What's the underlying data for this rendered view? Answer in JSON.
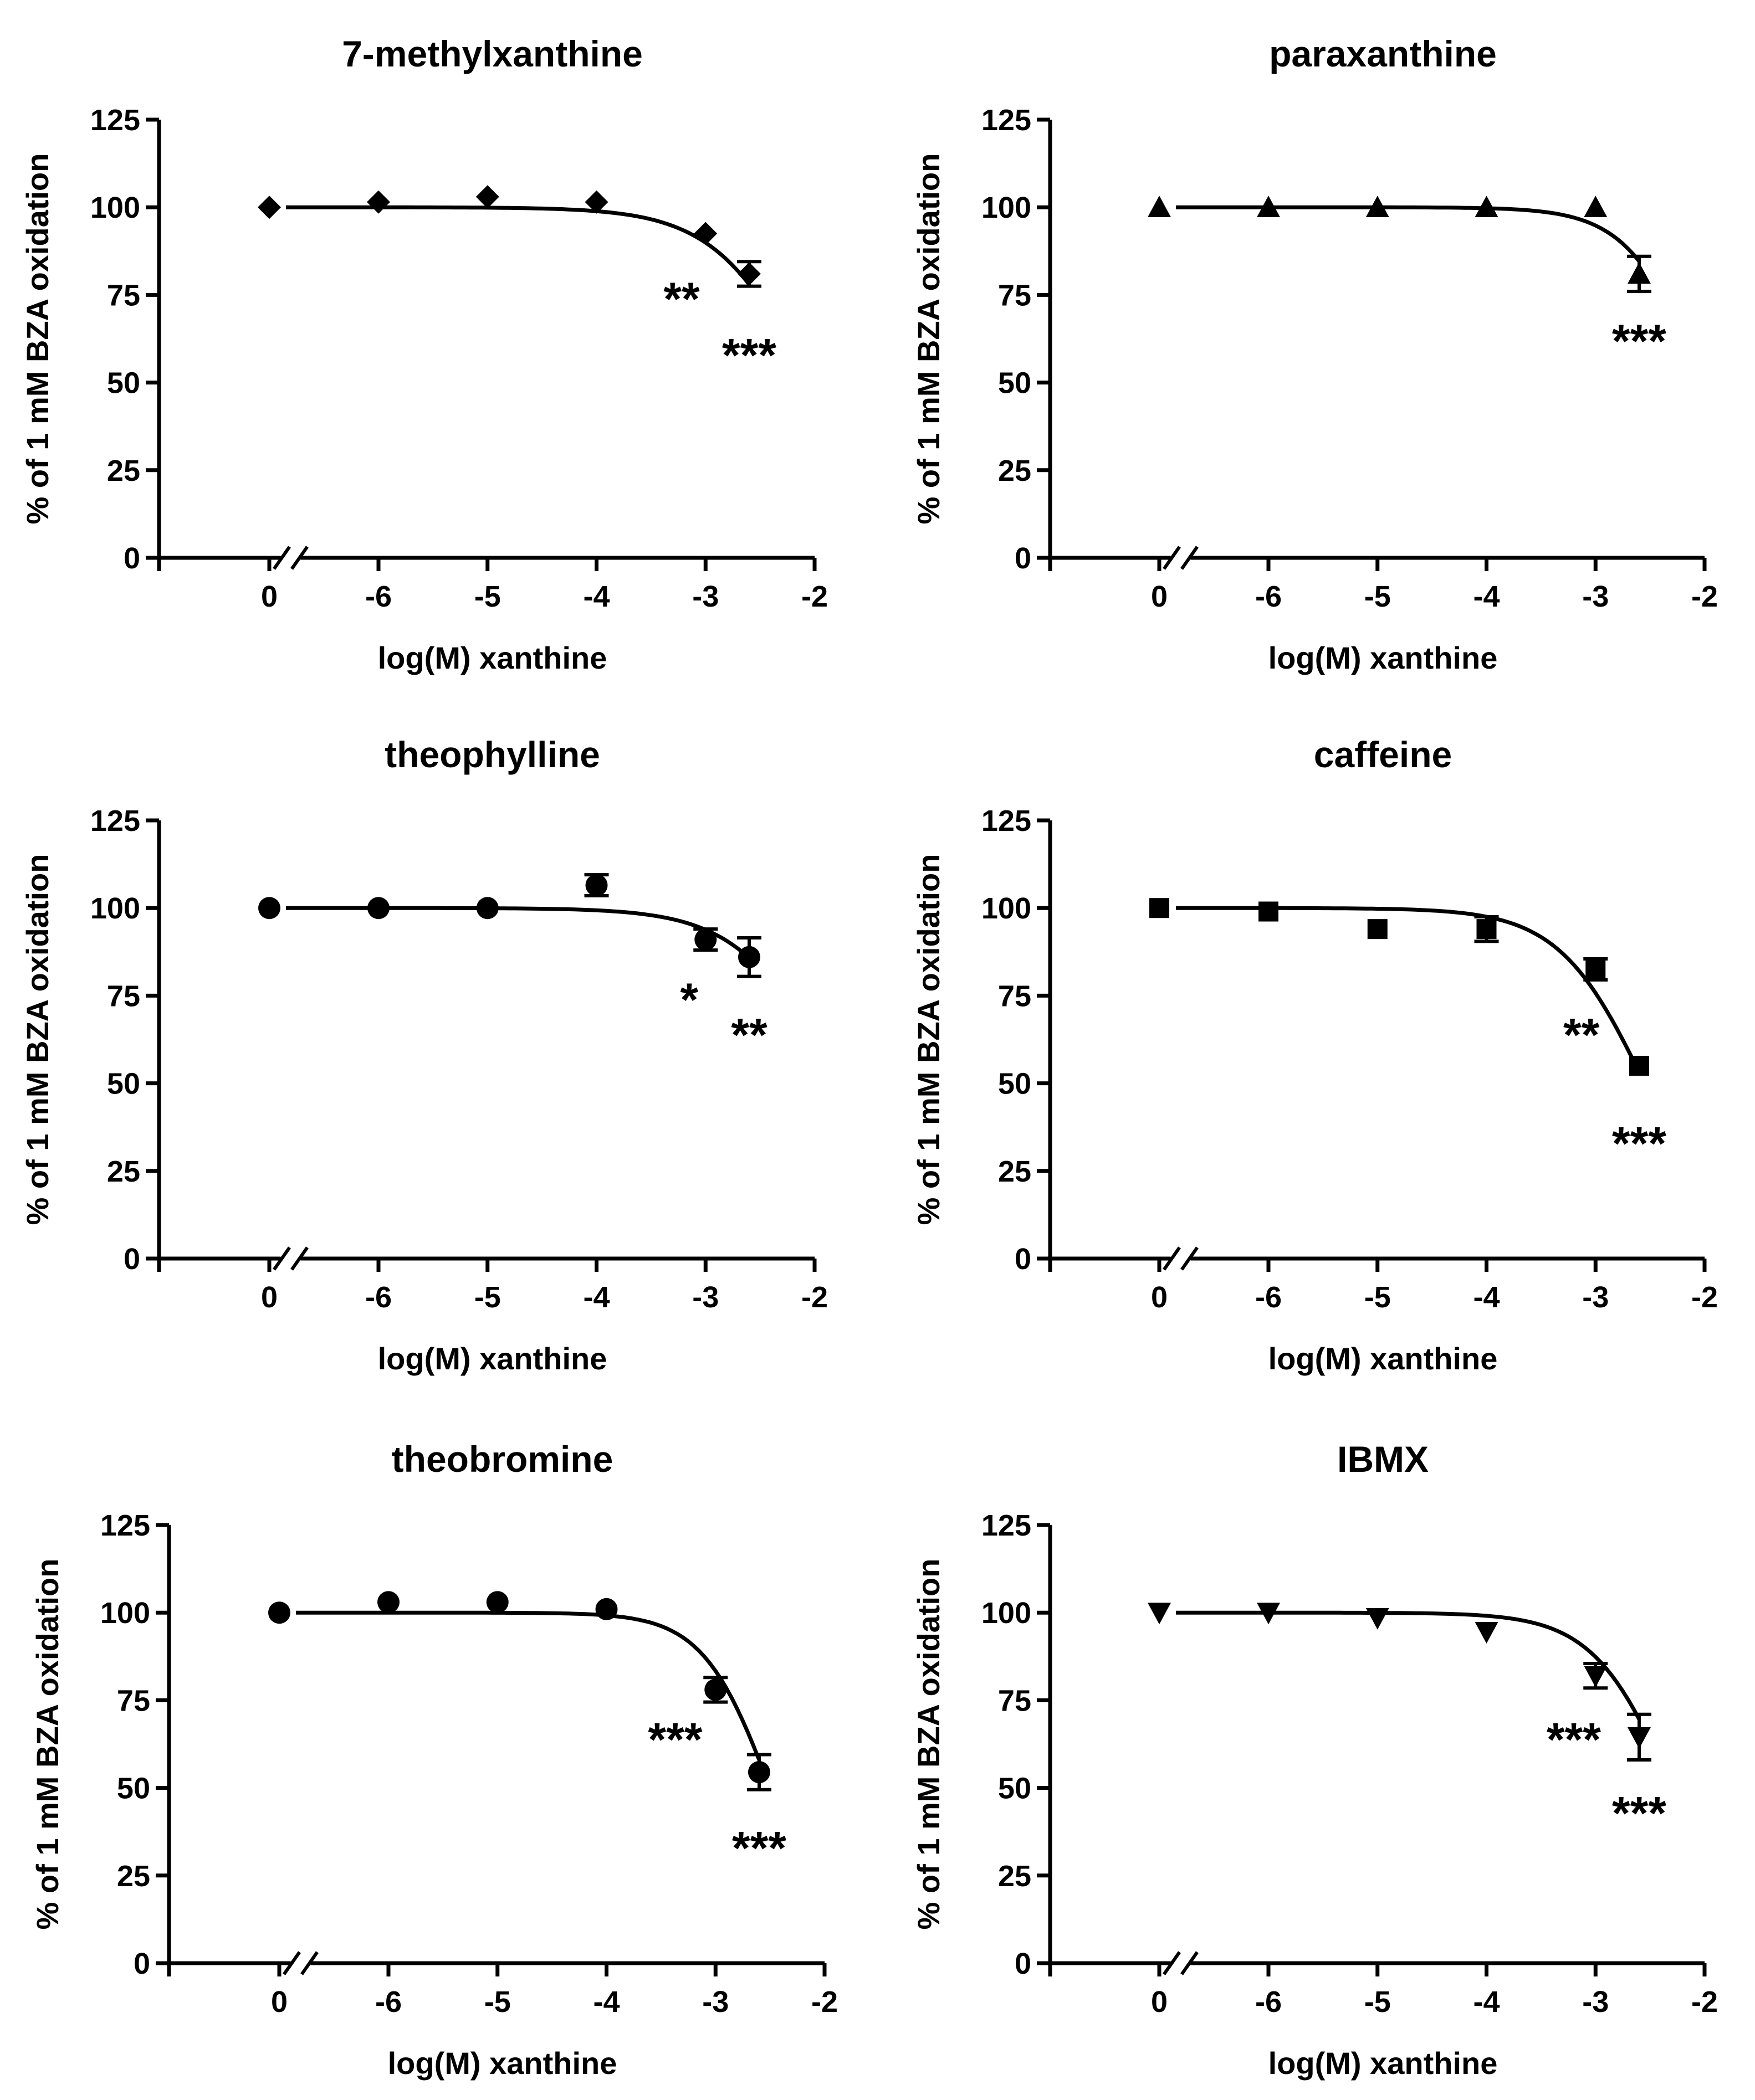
{
  "chart_data": [
    {
      "type": "line",
      "title": "7-methylxanthine",
      "xlabel": "log(M) xanthine",
      "ylabel": "% of 1 mM BZA oxidation",
      "xticks": [
        "0",
        "-6",
        "-5",
        "-4",
        "-3",
        "-2"
      ],
      "yticks": [
        "0",
        "25",
        "50",
        "75",
        "100",
        "125"
      ],
      "ylim": [
        0,
        125
      ],
      "xlim": [
        -7,
        -2
      ],
      "marker": "diamond",
      "points": [
        {
          "x": 0,
          "y": 100,
          "err": 0
        },
        {
          "x": -6,
          "y": 101.5,
          "err": 0
        },
        {
          "x": -5,
          "y": 103,
          "err": 0
        },
        {
          "x": -4,
          "y": 101.5,
          "err": 0
        },
        {
          "x": -3,
          "y": 92.5,
          "err": 0
        },
        {
          "x": -2.6,
          "y": 81,
          "err": 3.5
        }
      ],
      "fit": {
        "top": 100,
        "bottom": 0,
        "logIC50": -2.05,
        "hill": 1
      },
      "annotations": [
        {
          "text": "**",
          "x": -3.22,
          "y": 74
        },
        {
          "text": "***",
          "x": -2.6,
          "y": 58
        }
      ]
    },
    {
      "type": "line",
      "title": "paraxanthine",
      "xlabel": "log(M) xanthine",
      "ylabel": "% of 1 mM BZA oxidation",
      "xticks": [
        "0",
        "-6",
        "-5",
        "-4",
        "-3",
        "-2"
      ],
      "yticks": [
        "0",
        "25",
        "50",
        "75",
        "100",
        "125"
      ],
      "ylim": [
        0,
        125
      ],
      "xlim": [
        -7,
        -2
      ],
      "marker": "triangle",
      "points": [
        {
          "x": 0,
          "y": 100,
          "err": 0
        },
        {
          "x": -6,
          "y": 100,
          "err": 0
        },
        {
          "x": -5,
          "y": 100,
          "err": 0
        },
        {
          "x": -4,
          "y": 100,
          "err": 0
        },
        {
          "x": -3,
          "y": 100,
          "err": 0
        },
        {
          "x": -2.6,
          "y": 81,
          "err": 5
        }
      ],
      "fit": {
        "top": 100,
        "bottom": 0,
        "logIC50": -2.03,
        "hill": 1.3
      },
      "annotations": [
        {
          "text": "***",
          "x": -2.6,
          "y": 62
        }
      ]
    },
    {
      "type": "line",
      "title": "theophylline",
      "xlabel": "log(M) xanthine",
      "ylabel": "% of 1 mM BZA oxidation",
      "xticks": [
        "0",
        "-6",
        "-5",
        "-4",
        "-3",
        "-2"
      ],
      "yticks": [
        "0",
        "25",
        "50",
        "75",
        "100",
        "125"
      ],
      "ylim": [
        0,
        125
      ],
      "xlim": [
        -7,
        -2
      ],
      "marker": "circle",
      "points": [
        {
          "x": 0,
          "y": 100,
          "err": 0
        },
        {
          "x": -6,
          "y": 100,
          "err": 0
        },
        {
          "x": -5,
          "y": 100,
          "err": 0
        },
        {
          "x": -4,
          "y": 106.5,
          "err": 3
        },
        {
          "x": -3,
          "y": 91,
          "err": 3
        },
        {
          "x": -2.6,
          "y": 86,
          "err": 5.5
        }
      ],
      "fit": {
        "top": 100,
        "bottom": 0,
        "logIC50": -1.82,
        "hill": 1
      },
      "annotations": [
        {
          "text": "*",
          "x": -3.15,
          "y": 74
        },
        {
          "text": "**",
          "x": -2.6,
          "y": 64
        }
      ]
    },
    {
      "type": "line",
      "title": "caffeine",
      "xlabel": "log(M) xanthine",
      "ylabel": "% of 1 mM BZA oxidation",
      "xticks": [
        "0",
        "-6",
        "-5",
        "-4",
        "-3",
        "-2"
      ],
      "yticks": [
        "0",
        "25",
        "50",
        "75",
        "100",
        "125"
      ],
      "ylim": [
        0,
        125
      ],
      "xlim": [
        -7,
        -2
      ],
      "marker": "square",
      "points": [
        {
          "x": 0,
          "y": 100,
          "err": 0
        },
        {
          "x": -6,
          "y": 99,
          "err": 0
        },
        {
          "x": -5,
          "y": 94,
          "err": 0
        },
        {
          "x": -4,
          "y": 94,
          "err": 3.5
        },
        {
          "x": -3,
          "y": 82.5,
          "err": 3
        },
        {
          "x": -2.6,
          "y": 55,
          "err": 0
        }
      ],
      "fit": {
        "top": 100,
        "bottom": 0,
        "logIC50": -2.55,
        "hill": 1.1
      },
      "annotations": [
        {
          "text": "**",
          "x": -3.13,
          "y": 64
        },
        {
          "text": "***",
          "x": -2.6,
          "y": 33
        }
      ]
    },
    {
      "type": "line",
      "title": "theobromine",
      "xlabel": "log(M) xanthine",
      "ylabel": "% of 1 mM BZA oxidation",
      "xticks": [
        "0",
        "-6",
        "-5",
        "-4",
        "-3",
        "-2"
      ],
      "yticks": [
        "0",
        "25",
        "50",
        "75",
        "100",
        "125"
      ],
      "ylim": [
        0,
        125
      ],
      "xlim": [
        -7,
        -2
      ],
      "marker": "circle",
      "points": [
        {
          "x": 0,
          "y": 100,
          "err": 0
        },
        {
          "x": -6,
          "y": 103,
          "err": 0
        },
        {
          "x": -5,
          "y": 103,
          "err": 0
        },
        {
          "x": -4,
          "y": 101,
          "err": 0
        },
        {
          "x": -3,
          "y": 78,
          "err": 3.5
        },
        {
          "x": -2.6,
          "y": 54.5,
          "err": 5
        }
      ],
      "fit": {
        "top": 100,
        "bottom": 0,
        "logIC50": -2.5,
        "hill": 1.4
      },
      "annotations": [
        {
          "text": "***",
          "x": -3.37,
          "y": 64
        },
        {
          "text": "***",
          "x": -2.6,
          "y": 33
        }
      ]
    },
    {
      "type": "line",
      "title": "IBMX",
      "xlabel": "log(M) xanthine",
      "ylabel": "% of 1 mM BZA oxidation",
      "xticks": [
        "0",
        "-6",
        "-5",
        "-4",
        "-3",
        "-2"
      ],
      "yticks": [
        "0",
        "25",
        "50",
        "75",
        "100",
        "125"
      ],
      "ylim": [
        0,
        125
      ],
      "xlim": [
        -7,
        -2
      ],
      "marker": "triangle-down",
      "points": [
        {
          "x": 0,
          "y": 100,
          "err": 0
        },
        {
          "x": -6,
          "y": 100,
          "err": 0
        },
        {
          "x": -5,
          "y": 98.5,
          "err": 0
        },
        {
          "x": -4,
          "y": 94.5,
          "err": 0
        },
        {
          "x": -3,
          "y": 82,
          "err": 3.5
        },
        {
          "x": -2.6,
          "y": 64.5,
          "err": 6.5
        }
      ],
      "fit": {
        "top": 100,
        "bottom": 0,
        "logIC50": -2.3,
        "hill": 1.2
      },
      "annotations": [
        {
          "text": "***",
          "x": -3.2,
          "y": 64
        },
        {
          "text": "***",
          "x": -2.6,
          "y": 43
        }
      ]
    }
  ]
}
